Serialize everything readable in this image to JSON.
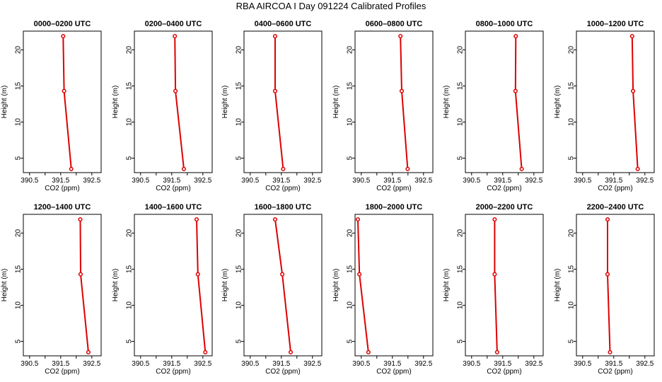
{
  "title": "RBA AIRCOA I  Day 091224  Calibrated Profiles",
  "chart_data": {
    "type": "line",
    "layout": "grid of 12 profile panels, 2 rows by 6 columns",
    "xlabel": "CO2 (ppm)",
    "ylabel": "Height (m)",
    "xlim": [
      390.3,
      392.8
    ],
    "ylim": [
      3.0,
      22.6
    ],
    "xticks": [
      "390.5",
      "391.5",
      "392.5"
    ],
    "xticks_minor": [
      391.0,
      392.0
    ],
    "yticks": [
      "5",
      "10",
      "15",
      "20"
    ],
    "heights": [
      3.5,
      14.3,
      21.9
    ],
    "line_color": "#dd0000",
    "marker": "open-circle",
    "grid": false,
    "panels": [
      {
        "title": "0000–0200 UTC",
        "co2": [
          391.84,
          391.61,
          391.58
        ]
      },
      {
        "title": "0200–0400 UTC",
        "co2": [
          391.89,
          391.62,
          391.6
        ]
      },
      {
        "title": "0400–0600 UTC",
        "co2": [
          391.56,
          391.3,
          391.3
        ]
      },
      {
        "title": "0600–0800 UTC",
        "co2": [
          391.99,
          391.8,
          391.76
        ]
      },
      {
        "title": "0800–1000 UTC",
        "co2": [
          392.11,
          391.91,
          391.92
        ]
      },
      {
        "title": "1000–1200 UTC",
        "co2": [
          392.27,
          392.12,
          392.09
        ]
      },
      {
        "title": "1200–1400 UTC",
        "co2": [
          392.39,
          392.14,
          392.13
        ]
      },
      {
        "title": "1400–1600 UTC",
        "co2": [
          392.58,
          392.34,
          392.3
        ]
      },
      {
        "title": "1600–1800 UTC",
        "co2": [
          391.8,
          391.53,
          391.3
        ]
      },
      {
        "title": "1800–2000 UTC",
        "co2": [
          390.73,
          390.44,
          390.39
        ]
      },
      {
        "title": "2000–2200 UTC",
        "co2": [
          391.32,
          391.24,
          391.24
        ]
      },
      {
        "title": "2200–2400 UTC",
        "co2": [
          391.38,
          391.3,
          391.3
        ]
      }
    ]
  }
}
